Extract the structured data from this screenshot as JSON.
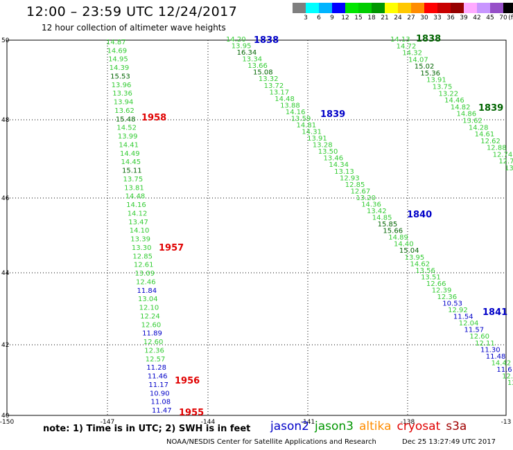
{
  "title": "12:00 – 23:59 UTC 12/24/2017",
  "subtitle": "12 hour collection of altimeter wave heights",
  "scale": {
    "unit": "(ft)",
    "colors": [
      "#7f7f7f",
      "#00ffff",
      "#00b4ff",
      "#0000ff",
      "#00e600",
      "#00cd00",
      "#009600",
      "#ffff00",
      "#ffc800",
      "#ff8c00",
      "#ff0000",
      "#c80000",
      "#960000",
      "#ffaaff",
      "#c896ff",
      "#9650c8",
      "#000000"
    ],
    "labels": [
      "3",
      "6",
      "9",
      "12",
      "15",
      "18",
      "21",
      "24",
      "27",
      "30",
      "33",
      "36",
      "39",
      "42",
      "45",
      "70"
    ]
  },
  "map": {
    "lon_ticks": [
      "-150",
      "-147",
      "-144",
      "-141",
      "-138",
      "-13"
    ],
    "lat_ticks": [
      "50",
      "48",
      "46",
      "44",
      "42",
      "40"
    ]
  },
  "passes": [
    {
      "time": "1955",
      "time_color": "#e00000",
      "points": [
        [
          "14.87",
          "g"
        ],
        [
          "14.69",
          "g"
        ],
        [
          "14.95",
          "g"
        ],
        [
          "14.39",
          "g"
        ],
        [
          "15.53",
          "d"
        ],
        [
          "13.96",
          "g"
        ],
        [
          "13.36",
          "g"
        ],
        [
          "13.94",
          "g"
        ],
        [
          "13.62",
          "g"
        ],
        [
          "15.48",
          "d"
        ],
        [
          "14.52",
          "g"
        ],
        [
          "13.99",
          "g"
        ],
        [
          "14.41",
          "g"
        ],
        [
          "14.49",
          "g"
        ],
        [
          "14.45",
          "g"
        ],
        [
          "15.11",
          "d"
        ],
        [
          "13.75",
          "g"
        ],
        [
          "13.81",
          "g"
        ],
        [
          "14.48",
          "g"
        ],
        [
          "14.16",
          "g"
        ],
        [
          "14.12",
          "g"
        ],
        [
          "13.47",
          "g"
        ],
        [
          "14.10",
          "g"
        ],
        [
          "13.39",
          "g"
        ],
        [
          "13.30",
          "g"
        ],
        [
          "12.85",
          "g"
        ],
        [
          "12.61",
          "g"
        ],
        [
          "13.09",
          "g"
        ],
        [
          "12.46",
          "g"
        ],
        [
          "11.84",
          "b"
        ],
        [
          "13.04",
          "g"
        ],
        [
          "12.10",
          "g"
        ],
        [
          "12.24",
          "g"
        ],
        [
          "12.60",
          "g"
        ],
        [
          "11.89",
          "b"
        ],
        [
          "12.60",
          "g"
        ],
        [
          "12.36",
          "g"
        ],
        [
          "12.57",
          "g"
        ],
        [
          "11.28",
          "b"
        ],
        [
          "11.46",
          "b"
        ],
        [
          "11.17",
          "b"
        ],
        [
          "10.90",
          "b"
        ],
        [
          "11.08",
          "b"
        ],
        [
          "11.47",
          "b"
        ]
      ]
    },
    {
      "time": "1838",
      "time_color": "#0000c8",
      "points": [
        [
          "14.20",
          "g"
        ],
        [
          "13.95",
          "g"
        ],
        [
          "16.34",
          "d"
        ],
        [
          "13.34",
          "g"
        ],
        [
          "13.66",
          "g"
        ],
        [
          "15.08",
          "d"
        ],
        [
          "13.32",
          "g"
        ],
        [
          "13.72",
          "g"
        ],
        [
          "13.17",
          "g"
        ],
        [
          "14.48",
          "g"
        ],
        [
          "13.88",
          "g"
        ],
        [
          "14.16",
          "g"
        ],
        [
          "13.59",
          "g"
        ],
        [
          "14.81",
          "g"
        ],
        [
          "14.31",
          "g"
        ],
        [
          "13.91",
          "g"
        ],
        [
          "13.28",
          "g"
        ],
        [
          "13.50",
          "g"
        ],
        [
          "13.46",
          "g"
        ],
        [
          "14.34",
          "g"
        ],
        [
          "13.13",
          "g"
        ],
        [
          "12.93",
          "g"
        ],
        [
          "12.85",
          "g"
        ],
        [
          "12.67",
          "g"
        ],
        [
          "13.20",
          "g"
        ],
        [
          "14.36",
          "g"
        ],
        [
          "13.42",
          "g"
        ],
        [
          "14.85",
          "g"
        ],
        [
          "15.85",
          "d"
        ],
        [
          "15.66",
          "d"
        ],
        [
          "14.89",
          "g"
        ],
        [
          "14.40",
          "g"
        ],
        [
          "15.04",
          "d"
        ],
        [
          "13.95",
          "g"
        ],
        [
          "14.62",
          "g"
        ],
        [
          "13.56",
          "g"
        ],
        [
          "13.51",
          "g"
        ],
        [
          "12.66",
          "g"
        ],
        [
          "12.39",
          "g"
        ],
        [
          "12.36",
          "g"
        ],
        [
          "10.53",
          "b"
        ],
        [
          "12.92",
          "g"
        ],
        [
          "11.54",
          "b"
        ],
        [
          "12.04",
          "g"
        ],
        [
          "11.57",
          "b"
        ],
        [
          "12.60",
          "g"
        ],
        [
          "12.11",
          "g"
        ],
        [
          "11.30",
          "b"
        ],
        [
          "11.48",
          "b"
        ],
        [
          "14.42",
          "g"
        ],
        [
          "11.6",
          "b"
        ],
        [
          "12.",
          "g"
        ],
        [
          "12.",
          "g"
        ]
      ]
    },
    {
      "time": "1838",
      "time_color": "#006400",
      "points": [
        [
          "14.13",
          "g"
        ],
        [
          "14.72",
          "g"
        ],
        [
          "14.32",
          "g"
        ],
        [
          "14.07",
          "g"
        ],
        [
          "15.02",
          "d"
        ],
        [
          "15.36",
          "d"
        ],
        [
          "13.91",
          "g"
        ],
        [
          "13.75",
          "g"
        ],
        [
          "13.22",
          "g"
        ],
        [
          "14.46",
          "g"
        ],
        [
          "14.82",
          "g"
        ],
        [
          "14.86",
          "g"
        ],
        [
          "13.62",
          "g"
        ],
        [
          "14.28",
          "g"
        ],
        [
          "14.61",
          "g"
        ],
        [
          "12.62",
          "g"
        ],
        [
          "12.88",
          "g"
        ],
        [
          "12.74",
          "g"
        ],
        [
          "12.7",
          "g"
        ],
        [
          "13",
          "g"
        ]
      ]
    }
  ],
  "time_labels": [
    {
      "text": "1838",
      "color": "#0000c8"
    },
    {
      "text": "1839",
      "color": "#0000c8"
    },
    {
      "text": "1840",
      "color": "#0000c8"
    },
    {
      "text": "1841",
      "color": "#0000c8"
    },
    {
      "text": "1838",
      "color": "#006400"
    },
    {
      "text": "1839",
      "color": "#006400"
    },
    {
      "text": "1958",
      "color": "#e00000"
    },
    {
      "text": "1957",
      "color": "#e00000"
    },
    {
      "text": "1956",
      "color": "#e00000"
    },
    {
      "text": "1955",
      "color": "#e00000"
    }
  ],
  "note": "note:  1) Time is in UTC;  2) SWH is in feet",
  "legend": [
    {
      "name": "jason2",
      "color": "#0000c8"
    },
    {
      "name": "jason3",
      "color": "#009600"
    },
    {
      "name": "altika",
      "color": "#ff8c00"
    },
    {
      "name": "cryosat",
      "color": "#e00000"
    },
    {
      "name": "s3a",
      "color": "#a00000"
    }
  ],
  "credit": "NOAA/NESDIS Center for Satellite Applications and Research",
  "timestamp": "Dec 25 13:27:49 UTC 2017"
}
